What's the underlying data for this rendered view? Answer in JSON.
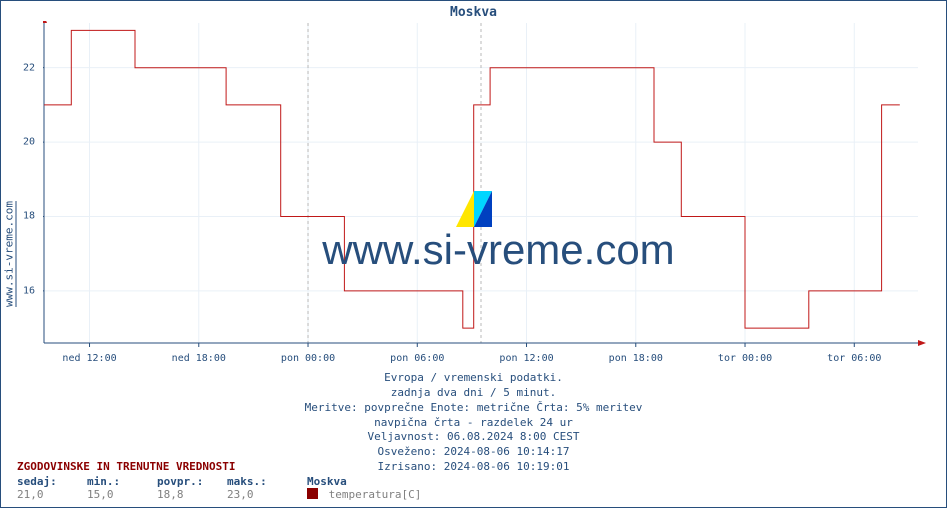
{
  "title": "Moskva",
  "side_link": "www.si-vreme.com",
  "watermark": "www.si-vreme.com",
  "chart": {
    "type": "line",
    "background": "#ffffff",
    "axis_color": "#274e7c",
    "grid_color": "#e9f0f7",
    "arrow_color": "#c01818",
    "line_color": "#c01818",
    "line_width": 1,
    "divider_color": "#b8b8b8",
    "divider_dash": "3,3",
    "y": {
      "min": 14.6,
      "max": 23.2,
      "ticks": [
        16,
        18,
        20,
        22
      ]
    },
    "x": {
      "min": 0,
      "max": 48,
      "ticks": [
        {
          "pos": 2.5,
          "label": "ned 12:00"
        },
        {
          "pos": 8.5,
          "label": "ned 18:00"
        },
        {
          "pos": 14.5,
          "label": "pon 00:00"
        },
        {
          "pos": 20.5,
          "label": "pon 06:00"
        },
        {
          "pos": 26.5,
          "label": "pon 12:00"
        },
        {
          "pos": 32.5,
          "label": "pon 18:00"
        },
        {
          "pos": 38.5,
          "label": "tor 00:00"
        },
        {
          "pos": 44.5,
          "label": "tor 06:00"
        }
      ],
      "dividers": [
        14.5,
        24.0
      ]
    },
    "series": [
      [
        0.0,
        21.0
      ],
      [
        1.5,
        21.0
      ],
      [
        1.5,
        23.0
      ],
      [
        5.0,
        23.0
      ],
      [
        5.0,
        22.0
      ],
      [
        10.0,
        22.0
      ],
      [
        10.0,
        21.0
      ],
      [
        13.0,
        21.0
      ],
      [
        13.0,
        18.0
      ],
      [
        16.5,
        18.0
      ],
      [
        16.5,
        16.0
      ],
      [
        23.0,
        16.0
      ],
      [
        23.0,
        15.0
      ],
      [
        23.6,
        15.0
      ],
      [
        23.6,
        21.0
      ],
      [
        24.5,
        21.0
      ],
      [
        24.5,
        22.0
      ],
      [
        33.5,
        22.0
      ],
      [
        33.5,
        20.0
      ],
      [
        35.0,
        20.0
      ],
      [
        35.0,
        18.0
      ],
      [
        38.5,
        18.0
      ],
      [
        38.5,
        15.0
      ],
      [
        42.0,
        15.0
      ],
      [
        42.0,
        16.0
      ],
      [
        46.0,
        16.0
      ],
      [
        46.0,
        21.0
      ],
      [
        47.0,
        21.0
      ]
    ]
  },
  "meta": {
    "line1": "Evropa / vremenski podatki.",
    "line2": "zadnja dva dni / 5 minut.",
    "line3": "Meritve: povprečne  Enote: metrične  Črta: 5% meritev",
    "line4": "navpična črta - razdelek 24 ur",
    "line5": "Veljavnost: 06.08.2024 8:00 CEST",
    "line6": "Osveženo: 2024-08-06 10:14:17",
    "line7": "Izrisano: 2024-08-06 10:19:01"
  },
  "stats": {
    "header": "ZGODOVINSKE IN TRENUTNE VREDNOSTI",
    "labels": {
      "now": "sedaj:",
      "min": "min.:",
      "avg": "povpr.:",
      "max": "maks.:"
    },
    "values": {
      "now": "21,0",
      "min": "15,0",
      "avg": "18,8",
      "max": "23,0"
    },
    "legend": {
      "name": "Moskva",
      "metric": "temperatura[C]",
      "swatch": "#8b0000"
    }
  },
  "logo_colors": {
    "yellow": "#ffe600",
    "cyan": "#00d6ff",
    "blue": "#0040c0"
  }
}
